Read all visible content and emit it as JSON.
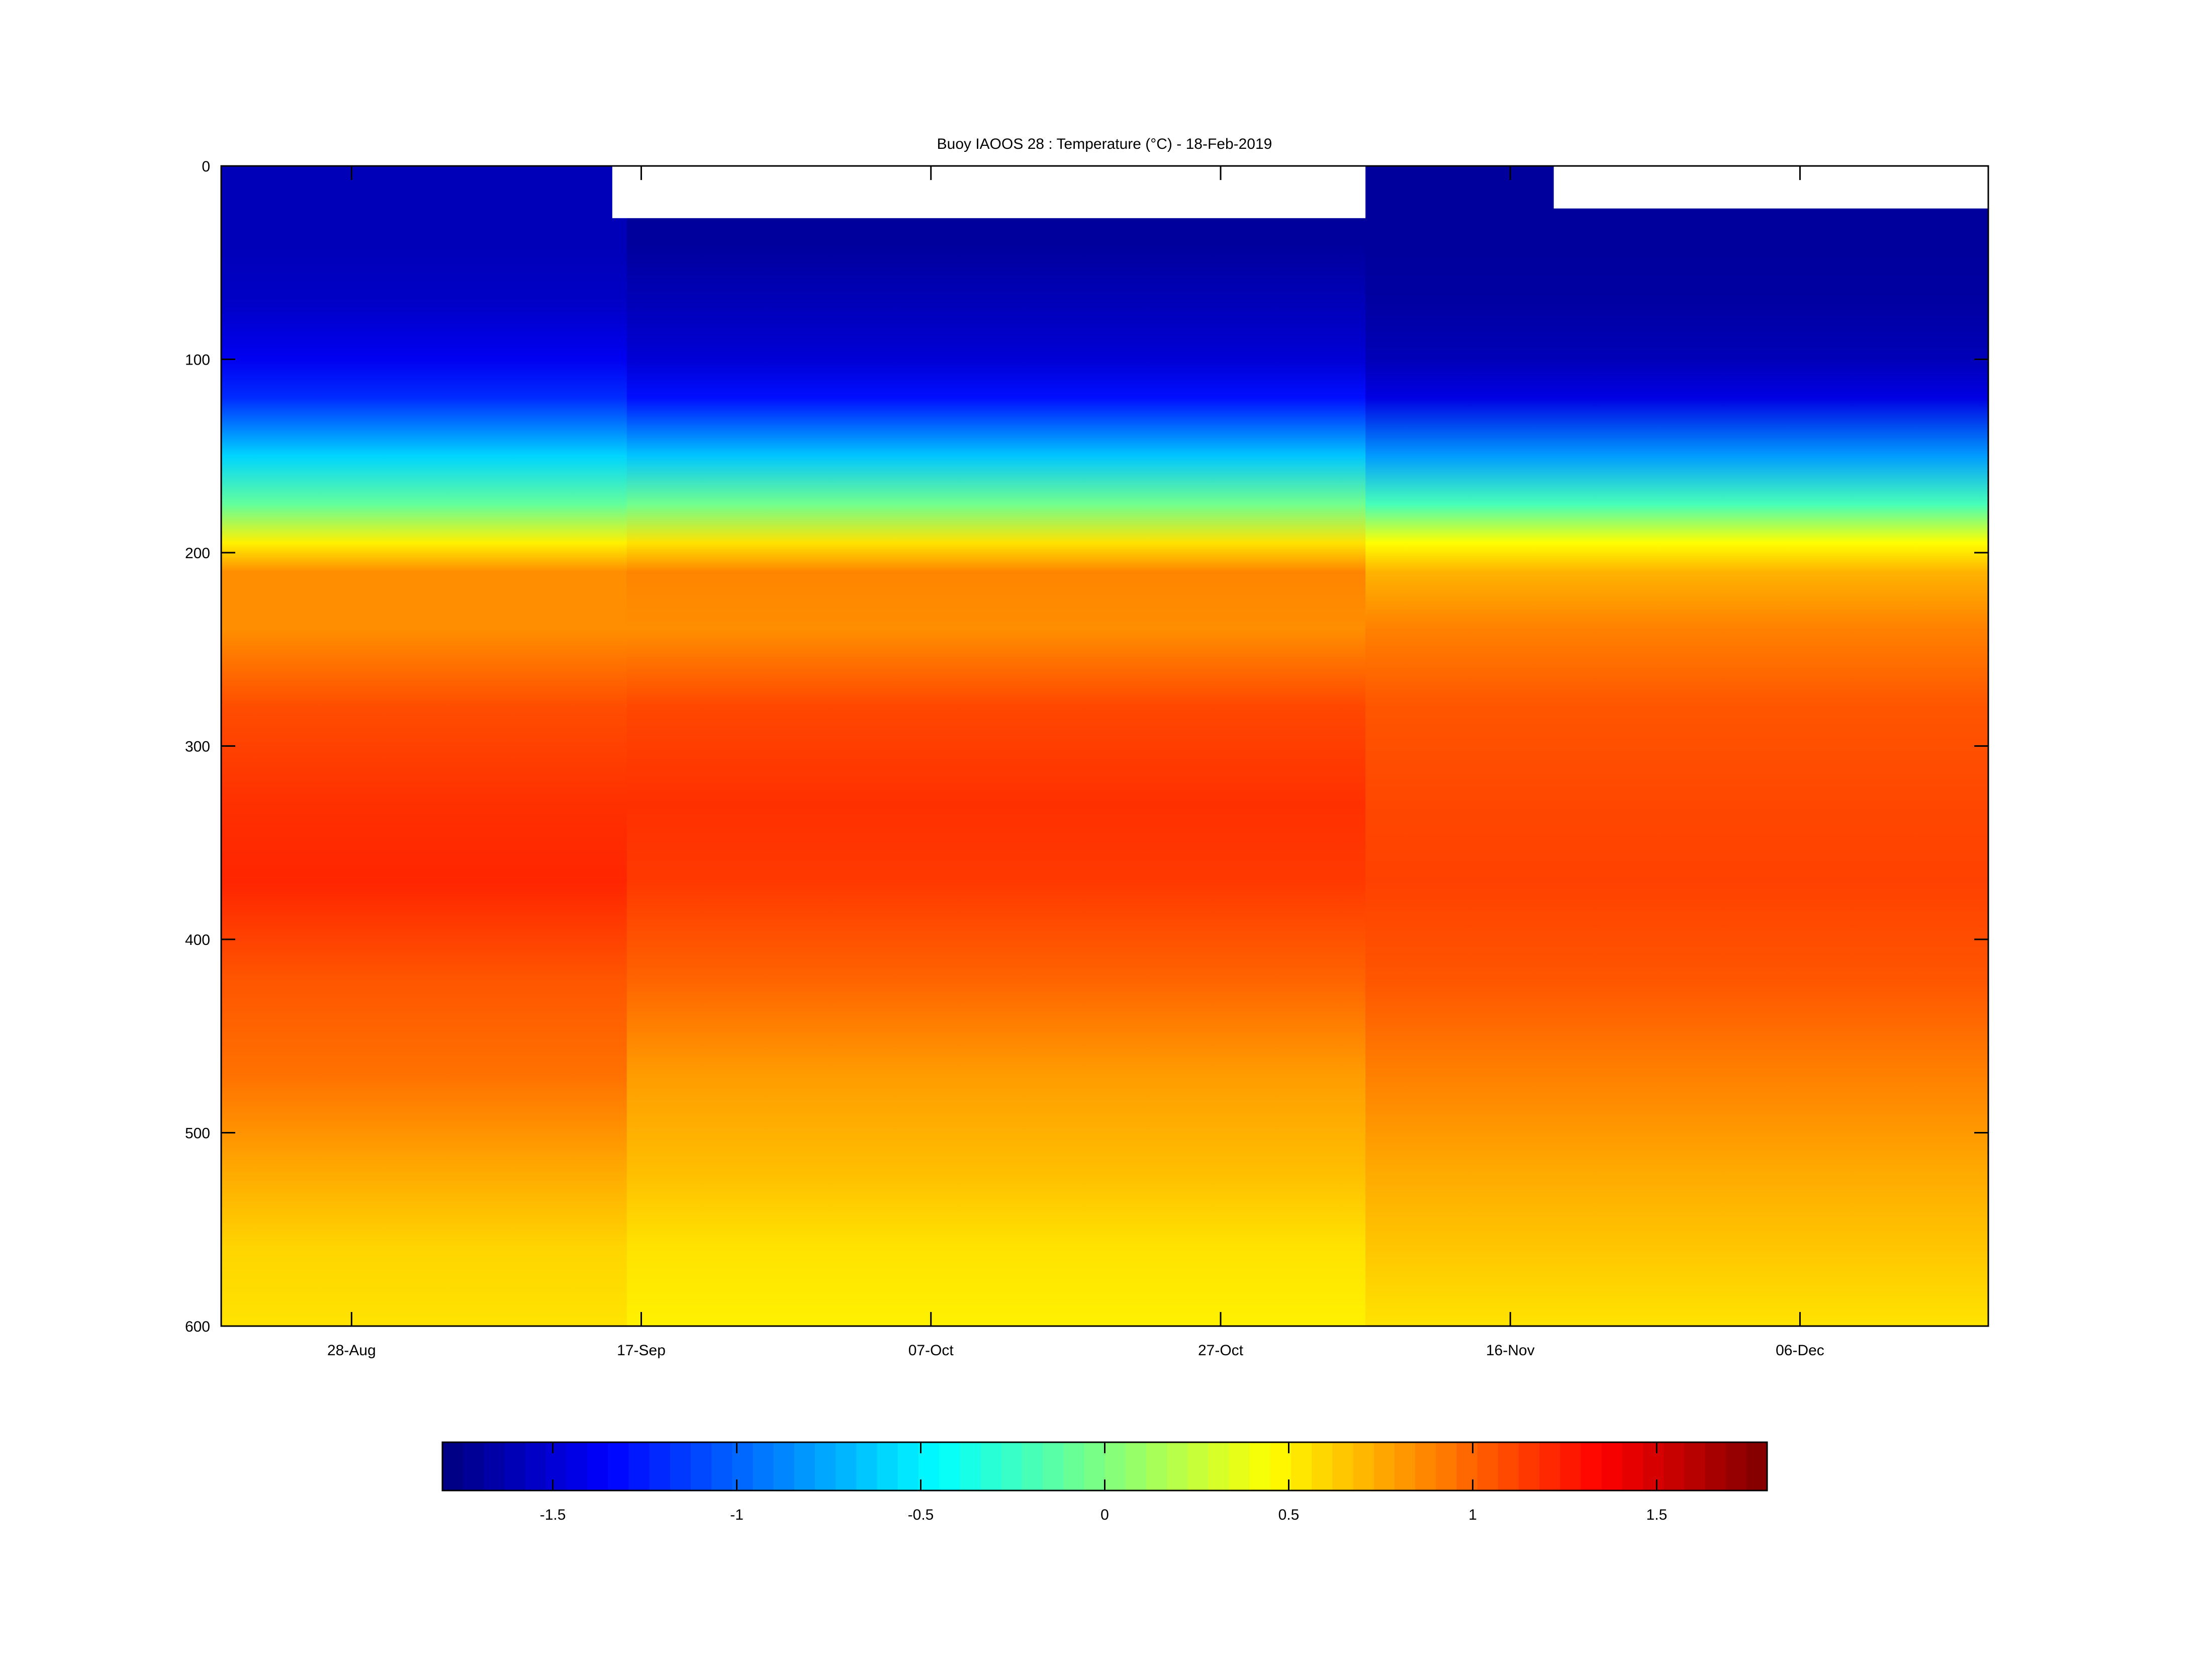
{
  "chart_data": {
    "type": "heatmap",
    "title": "Buoy IAOOS 28 : Temperature (°C) - 18-Feb-2019",
    "xlabel": "",
    "ylabel": "",
    "x_axis": {
      "type": "date",
      "range": [
        "2018-08-19",
        "2018-12-19"
      ],
      "ticks": [
        {
          "date": "2018-08-28",
          "label": "28-Aug"
        },
        {
          "date": "2018-09-17",
          "label": "17-Sep"
        },
        {
          "date": "2018-10-07",
          "label": "07-Oct"
        },
        {
          "date": "2018-10-27",
          "label": "27-Oct"
        },
        {
          "date": "2018-11-16",
          "label": "16-Nov"
        },
        {
          "date": "2018-12-06",
          "label": "06-Dec"
        }
      ]
    },
    "y_axis": {
      "range": [
        0,
        600
      ],
      "reversed": true,
      "ticks": [
        0,
        100,
        200,
        300,
        400,
        500,
        600
      ]
    },
    "colorbar": {
      "colormap": "jet",
      "range": [
        -1.8,
        1.8
      ],
      "ticks": [
        -1.5,
        -1,
        -0.5,
        0,
        0.5,
        1,
        1.5
      ],
      "tick_labels": [
        "-1.5",
        "-1",
        "-0.5",
        "0",
        "0.5",
        "1",
        "1.5"
      ]
    },
    "temperature_profile": {
      "depth": [
        10,
        40,
        70,
        100,
        120,
        150,
        175,
        195,
        210,
        240,
        280,
        330,
        370,
        420,
        470,
        520,
        560,
        600
      ],
      "early_period": [
        -1.6,
        -1.6,
        -1.55,
        -1.4,
        -1.2,
        -0.6,
        -0.1,
        0.5,
        0.85,
        0.85,
        1.08,
        1.18,
        1.22,
        1.05,
        0.95,
        0.75,
        0.6,
        0.55
      ],
      "mid_period": [
        -1.7,
        -1.7,
        -1.6,
        -1.5,
        -1.3,
        -0.65,
        -0.05,
        0.55,
        0.88,
        0.85,
        1.1,
        1.18,
        1.15,
        1.0,
        0.8,
        0.68,
        0.55,
        0.5
      ],
      "late_period": [
        -1.7,
        -1.7,
        -1.68,
        -1.6,
        -1.45,
        -0.8,
        -0.2,
        0.45,
        0.72,
        0.9,
        1.05,
        1.1,
        1.12,
        1.05,
        0.9,
        0.75,
        0.65,
        0.55
      ]
    },
    "data_gaps": [
      {
        "start": "2018-09-15",
        "end": "2018-11-06",
        "shallow_limit": 27
      },
      {
        "start": "2018-11-19",
        "end": "2018-12-19",
        "shallow_limit": 22
      }
    ]
  }
}
